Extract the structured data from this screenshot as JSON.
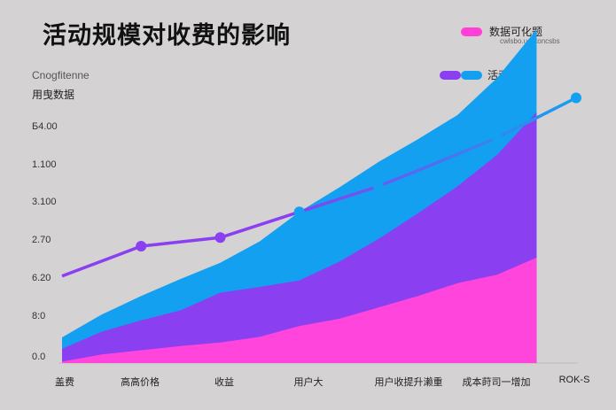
{
  "chart_data": {
    "type": "area",
    "title": "活动规模对收费的影响",
    "subtitle_lines": [
      "Cnogfitenne",
      "用曳数据"
    ],
    "y_tick_labels": [
      "Б4.00",
      "1.100",
      "3.100",
      "2.70",
      "6.20",
      "8:0",
      "0.0"
    ],
    "x_tick_labels": [
      "盖费",
      "高高价格",
      "收益",
      "用户大",
      "用户收提升濑重",
      "成本莳司一增加",
      "ROK-S"
    ],
    "x": [
      0,
      1,
      2,
      3,
      4,
      5,
      6,
      7,
      8,
      9,
      10,
      11,
      12
    ],
    "legend": [
      {
        "label": "数据可化题",
        "sub": "cwlsbo.uoptoncsbs",
        "colors": [
          "#ff3fd8"
        ]
      },
      {
        "label": "活动规模",
        "colors": [
          "#8a3ff0",
          "#14a0f0"
        ]
      }
    ],
    "series": [
      {
        "name": "数据可化题",
        "color": "#ff45dc",
        "values": [
          0.05,
          0.3,
          0.45,
          0.6,
          0.72,
          0.92,
          1.3,
          1.55,
          1.95,
          2.35,
          2.8,
          3.1,
          3.7
        ]
      },
      {
        "name": "活动规模",
        "color": "#8a3ff0",
        "values": [
          0.45,
          0.8,
          1.05,
          1.25,
          1.75,
          1.75,
          1.6,
          2.0,
          2.4,
          2.9,
          3.4,
          4.2,
          5.1
        ]
      },
      {
        "color": "#14a0f0",
        "values": [
          0.4,
          0.6,
          0.85,
          1.1,
          1.05,
          1.6,
          2.4,
          2.6,
          2.7,
          2.6,
          2.5,
          2.7,
          2.9
        ]
      }
    ],
    "line": {
      "color_start": "#8a3ff0",
      "color_end": "#14a0f0",
      "x": [
        0,
        2,
        4,
        6,
        8,
        9,
        11,
        13
      ],
      "values": [
        3.05,
        4.1,
        4.4,
        5.3,
        6.2,
        6.75,
        7.9,
        9.3
      ],
      "markers": [
        2,
        4,
        6,
        8,
        11,
        13
      ]
    },
    "ylim": [
      0,
      10
    ],
    "xlim": [
      0,
      13
    ],
    "grid": false
  }
}
